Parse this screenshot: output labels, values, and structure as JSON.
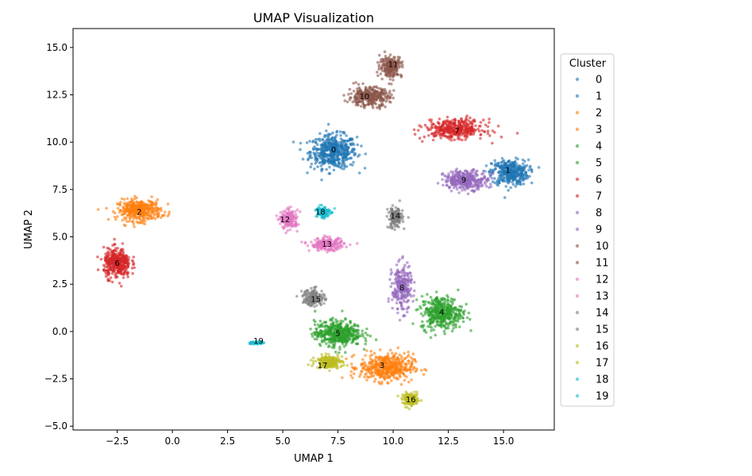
{
  "chart_data": {
    "type": "scatter",
    "title": "UMAP Visualization",
    "xlabel": "UMAP 1",
    "ylabel": "UMAP 2",
    "xlim": [
      -4.5,
      17.3
    ],
    "ylim": [
      -5.2,
      16.0
    ],
    "xticks": [
      -2.5,
      0.0,
      2.5,
      5.0,
      7.5,
      10.0,
      12.5,
      15.0
    ],
    "xtick_labels": [
      "−2.5",
      "0.0",
      "2.5",
      "5.0",
      "7.5",
      "10.0",
      "12.5",
      "15.0"
    ],
    "yticks": [
      -5.0,
      -2.5,
      0.0,
      2.5,
      5.0,
      7.5,
      10.0,
      12.5,
      15.0
    ],
    "ytick_labels": [
      "−5.0",
      "−2.5",
      "0.0",
      "2.5",
      "5.0",
      "7.5",
      "10.0",
      "12.5",
      "15.0"
    ],
    "grid": false,
    "legend": {
      "title": "Cluster",
      "placement": "right-outside"
    },
    "series": [
      {
        "name": "0",
        "color": "#1f77b4",
        "center": [
          7.3,
          9.5
        ],
        "spread": [
          0.95,
          0.8
        ],
        "points": 500
      },
      {
        "name": "1",
        "color": "#1f77b4",
        "center": [
          15.3,
          8.4
        ],
        "spread": [
          0.75,
          0.6
        ],
        "points": 380
      },
      {
        "name": "2",
        "color": "#ff7f0e",
        "center": [
          -1.5,
          6.4
        ],
        "spread": [
          0.9,
          0.5
        ],
        "points": 380
      },
      {
        "name": "3",
        "color": "#ff7f0e",
        "center": [
          9.7,
          -1.9
        ],
        "spread": [
          1.1,
          0.65
        ],
        "points": 450
      },
      {
        "name": "4",
        "color": "#2ca02c",
        "center": [
          12.2,
          1.0
        ],
        "spread": [
          0.85,
          0.8
        ],
        "points": 400
      },
      {
        "name": "5",
        "color": "#2ca02c",
        "center": [
          7.5,
          -0.1
        ],
        "spread": [
          0.95,
          0.6
        ],
        "points": 450
      },
      {
        "name": "6",
        "color": "#d62728",
        "center": [
          -2.5,
          3.6
        ],
        "spread": [
          0.55,
          0.7
        ],
        "points": 380
      },
      {
        "name": "7",
        "color": "#d62728",
        "center": [
          12.8,
          10.7
        ],
        "spread": [
          1.2,
          0.45
        ],
        "points": 380
      },
      {
        "name": "8",
        "color": "#9467bd",
        "center": [
          10.4,
          2.3
        ],
        "spread": [
          0.4,
          1.1
        ],
        "points": 250
      },
      {
        "name": "9",
        "color": "#9467bd",
        "center": [
          13.3,
          8.0
        ],
        "spread": [
          0.9,
          0.45
        ],
        "points": 320
      },
      {
        "name": "10",
        "color": "#8c564b",
        "center": [
          8.9,
          12.4
        ],
        "spread": [
          0.85,
          0.45
        ],
        "points": 320
      },
      {
        "name": "11",
        "color": "#8c564b",
        "center": [
          9.9,
          14.0
        ],
        "spread": [
          0.45,
          0.5
        ],
        "points": 220
      },
      {
        "name": "12",
        "color": "#e377c2",
        "center": [
          5.3,
          5.9
        ],
        "spread": [
          0.35,
          0.45
        ],
        "points": 180
      },
      {
        "name": "13",
        "color": "#e377c2",
        "center": [
          7.0,
          4.6
        ],
        "spread": [
          0.7,
          0.3
        ],
        "points": 200
      },
      {
        "name": "14",
        "color": "#7f7f7f",
        "center": [
          10.1,
          6.0
        ],
        "spread": [
          0.3,
          0.5
        ],
        "points": 150
      },
      {
        "name": "15",
        "color": "#7f7f7f",
        "center": [
          6.4,
          1.8
        ],
        "spread": [
          0.45,
          0.4
        ],
        "points": 150
      },
      {
        "name": "16",
        "color": "#bcbd22",
        "center": [
          10.8,
          -3.6
        ],
        "spread": [
          0.35,
          0.3
        ],
        "points": 140
      },
      {
        "name": "17",
        "color": "#bcbd22",
        "center": [
          7.1,
          -1.6
        ],
        "spread": [
          0.55,
          0.3
        ],
        "points": 180
      },
      {
        "name": "18",
        "color": "#17becf",
        "center": [
          6.8,
          6.3
        ],
        "spread": [
          0.3,
          0.3
        ],
        "points": 110
      },
      {
        "name": "19",
        "color": "#17becf",
        "center": [
          3.8,
          -0.6
        ],
        "spread": [
          0.3,
          0.07
        ],
        "points": 50
      }
    ],
    "annotations": [
      {
        "text": "0",
        "x": 7.3,
        "y": 9.6
      },
      {
        "text": "1",
        "x": 15.2,
        "y": 8.5
      },
      {
        "text": "2",
        "x": -1.5,
        "y": 6.3
      },
      {
        "text": "3",
        "x": 9.5,
        "y": -1.8
      },
      {
        "text": "4",
        "x": 12.2,
        "y": 1.0
      },
      {
        "text": "5",
        "x": 7.5,
        "y": -0.1
      },
      {
        "text": "6",
        "x": -2.5,
        "y": 3.6
      },
      {
        "text": "7",
        "x": 12.9,
        "y": 10.6
      },
      {
        "text": "8",
        "x": 10.4,
        "y": 2.3
      },
      {
        "text": "9",
        "x": 13.2,
        "y": 8.0
      },
      {
        "text": "10",
        "x": 8.7,
        "y": 12.4
      },
      {
        "text": "11",
        "x": 10.0,
        "y": 14.1
      },
      {
        "text": "12",
        "x": 5.1,
        "y": 5.9
      },
      {
        "text": "13",
        "x": 7.0,
        "y": 4.6
      },
      {
        "text": "14",
        "x": 10.1,
        "y": 6.1
      },
      {
        "text": "15",
        "x": 6.5,
        "y": 1.7
      },
      {
        "text": "16",
        "x": 10.8,
        "y": -3.6
      },
      {
        "text": "17",
        "x": 6.8,
        "y": -1.8
      },
      {
        "text": "18",
        "x": 6.7,
        "y": 6.3
      },
      {
        "text": "19",
        "x": 3.9,
        "y": -0.5
      }
    ]
  }
}
